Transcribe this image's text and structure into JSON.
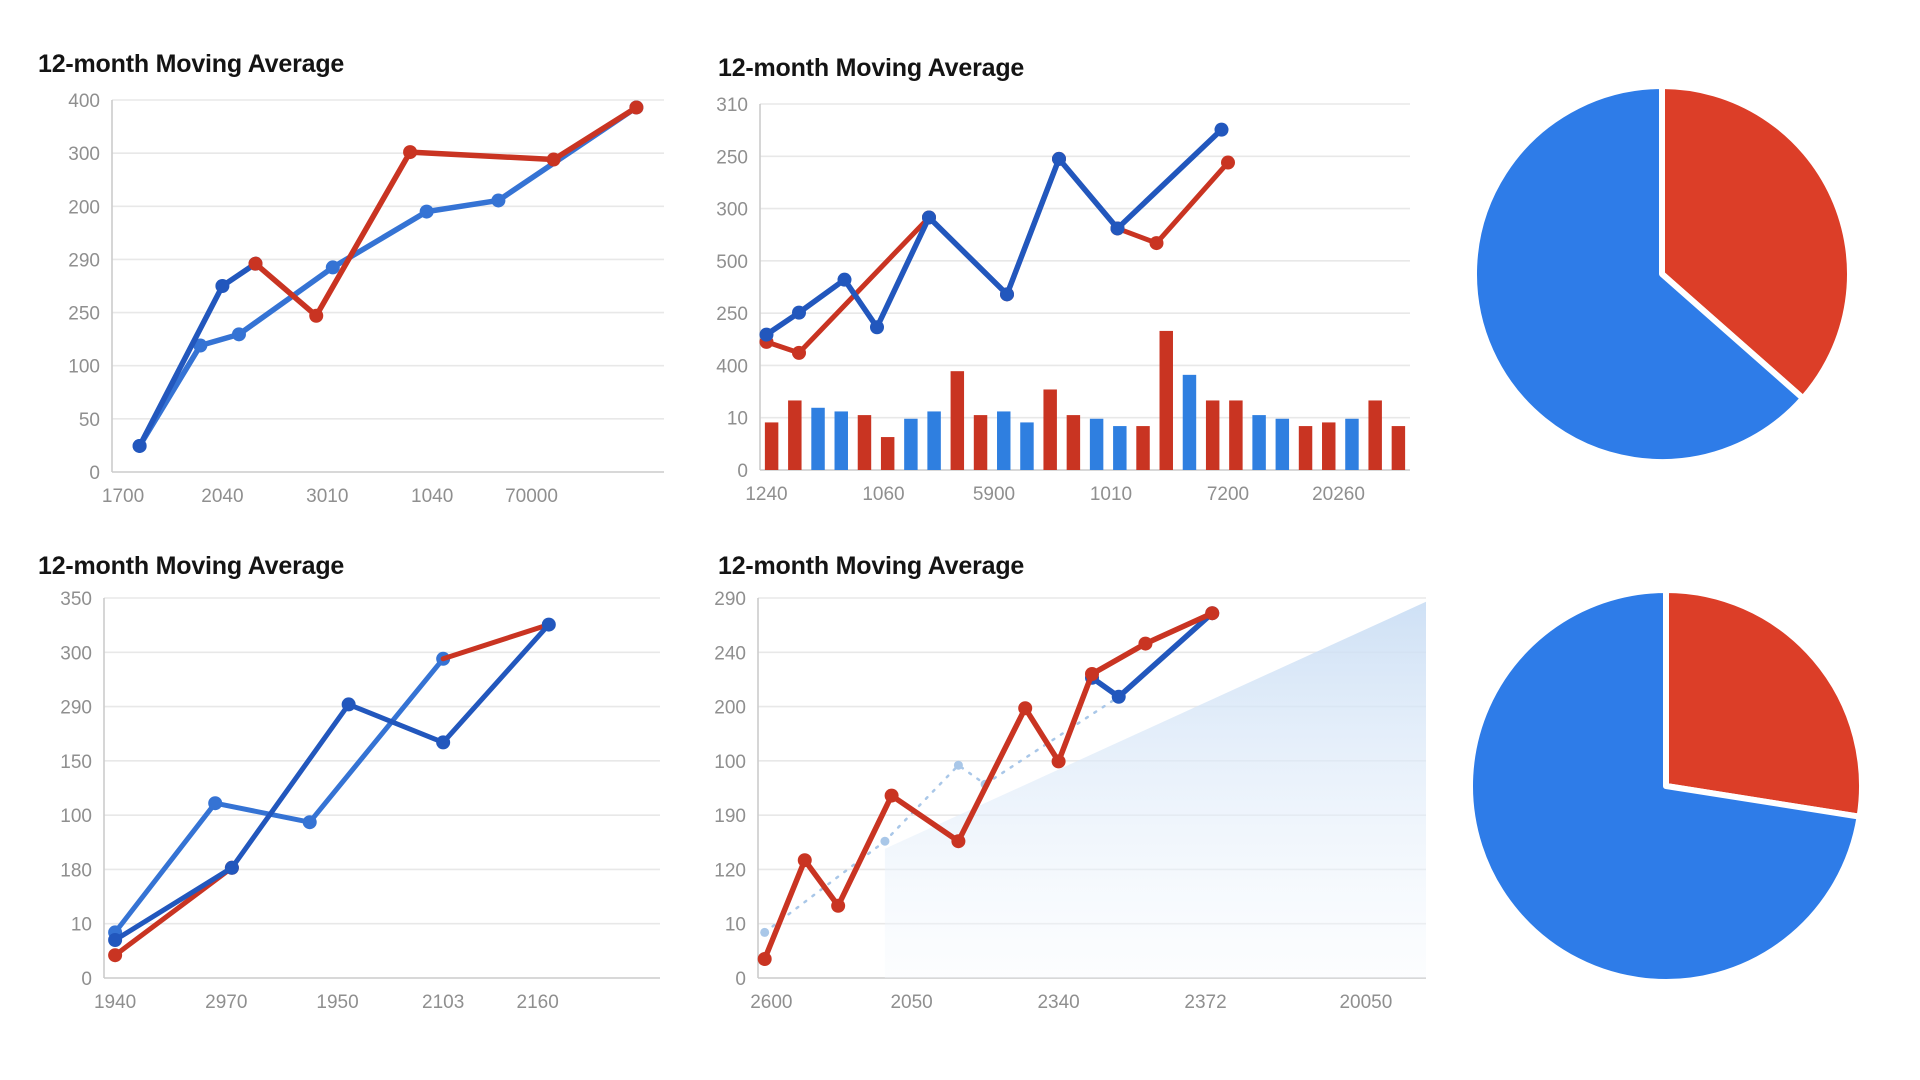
{
  "page": {
    "background": "#ffffff"
  },
  "palette": {
    "blue_dark": "#2257bd",
    "blue_medium": "#3573d4",
    "blue_bright": "#2f7fe0",
    "blue_light": "#a9c7e8",
    "red": "#c93422",
    "pie_blue": "#2e7ce8",
    "pie_red": "#dc3e28",
    "grid": "#e8e8e8",
    "axis": "#cccccc",
    "tick_text": "#8f8f8f",
    "title_text": "#141414",
    "area_top": "#c9ddf4",
    "area_bottom": "#f6fafe"
  },
  "chart_data": [
    {
      "id": "chart-top-left",
      "type": "line",
      "title": "12-month Moving Average",
      "y_tick_labels": [
        "400",
        "300",
        "200",
        "290",
        "250",
        "100",
        "50",
        "0"
      ],
      "x_tick_labels": [
        "1700",
        "2040",
        "3010",
        "1040",
        "70000"
      ],
      "x_tick_pct": [
        2,
        20,
        39,
        58,
        76
      ],
      "grid": true,
      "series": [
        {
          "name": "blue-medium-line",
          "color": "blue_medium",
          "width": 5.5,
          "markers": true,
          "points_pct": [
            [
              5,
              93
            ],
            [
              16,
              66
            ],
            [
              23,
              63
            ],
            [
              40,
              45
            ],
            [
              57,
              30
            ],
            [
              70,
              27
            ],
            [
              95,
              2
            ]
          ]
        },
        {
          "name": "blue-dark-line",
          "color": "blue_dark",
          "width": 5.5,
          "markers": true,
          "points_pct": [
            [
              5,
              93
            ],
            [
              20,
              50
            ],
            [
              26,
              44
            ]
          ]
        },
        {
          "name": "red-line",
          "color": "red",
          "width": 5.5,
          "markers": true,
          "points_pct": [
            [
              26,
              44
            ],
            [
              37,
              58
            ],
            [
              54,
              14
            ],
            [
              80,
              16
            ],
            [
              95,
              2
            ]
          ]
        }
      ]
    },
    {
      "id": "chart-top-middle",
      "type": "line+bar",
      "title": "12-month Moving Average",
      "y_tick_labels": [
        "310",
        "250",
        "300",
        "500",
        "250",
        "400",
        "10",
        "0"
      ],
      "x_tick_labels": [
        "1240",
        "1060",
        "5900",
        "1010",
        "7200",
        "20260"
      ],
      "x_tick_pct": [
        1,
        19,
        36,
        54,
        72,
        89
      ],
      "grid": true,
      "bars": {
        "heights_pct": [
          13,
          19,
          17,
          16,
          15,
          9,
          14,
          16,
          27,
          15,
          16,
          13,
          22,
          15,
          14,
          12,
          12,
          38,
          26,
          19,
          19,
          15,
          14,
          12,
          13,
          14,
          19,
          12
        ],
        "colors": [
          "r",
          "r",
          "b",
          "b",
          "r",
          "r",
          "b",
          "b",
          "r",
          "r",
          "b",
          "b",
          "r",
          "r",
          "b",
          "b",
          "r",
          "r",
          "b",
          "r",
          "r",
          "b",
          "b",
          "r",
          "r",
          "b",
          "r",
          "r"
        ]
      },
      "series": [
        {
          "name": "red-line",
          "color": "red",
          "width": 5,
          "markers": true,
          "points_pct": [
            [
              1,
              65
            ],
            [
              6,
              68
            ],
            [
              26,
              31
            ],
            [
              38,
              52
            ],
            [
              46,
              15
            ],
            [
              55,
              34
            ],
            [
              61,
              38
            ],
            [
              72,
              16
            ]
          ]
        },
        {
          "name": "blue-line",
          "color": "blue_dark",
          "width": 5.5,
          "markers": true,
          "points_pct": [
            [
              1,
              63
            ],
            [
              6,
              57
            ],
            [
              13,
              48
            ],
            [
              18,
              61
            ],
            [
              26,
              31
            ],
            [
              38,
              52
            ],
            [
              46,
              15
            ],
            [
              55,
              34
            ],
            [
              71,
              7
            ]
          ]
        }
      ]
    },
    {
      "id": "chart-bottom-left",
      "type": "line",
      "title": "12-month Moving Average",
      "y_tick_labels": [
        "350",
        "300",
        "290",
        "150",
        "100",
        "180",
        "10",
        "0"
      ],
      "x_tick_labels": [
        "1940",
        "2970",
        "1950",
        "2103",
        "2160"
      ],
      "x_tick_pct": [
        2,
        22,
        42,
        61,
        78
      ],
      "grid": true,
      "series": [
        {
          "name": "red-line-a",
          "color": "red",
          "width": 5,
          "markers": true,
          "points_pct": [
            [
              2,
              94
            ],
            [
              23,
              71
            ]
          ]
        },
        {
          "name": "blue-medium-line",
          "color": "blue_medium",
          "width": 5,
          "markers": true,
          "points_pct": [
            [
              2,
              88
            ],
            [
              20,
              54
            ],
            [
              37,
              59
            ],
            [
              61,
              16
            ]
          ]
        },
        {
          "name": "red-line-b",
          "color": "red",
          "width": 5,
          "markers": false,
          "points_pct": [
            [
              61,
              16
            ],
            [
              80,
              7
            ]
          ]
        },
        {
          "name": "blue-dark-line",
          "color": "blue_dark",
          "width": 5,
          "markers": true,
          "points_pct": [
            [
              2,
              90
            ],
            [
              23,
              71
            ],
            [
              44,
              28
            ],
            [
              61,
              38
            ],
            [
              80,
              7
            ]
          ]
        }
      ]
    },
    {
      "id": "chart-bottom-middle",
      "type": "line+area",
      "title": "12-month Moving Average",
      "y_tick_labels": [
        "290",
        "240",
        "200",
        "100",
        "190",
        "120",
        "10",
        "0"
      ],
      "x_tick_labels": [
        "2600",
        "2050",
        "2340",
        "2372",
        "20050"
      ],
      "x_tick_pct": [
        2,
        23,
        45,
        67,
        91
      ],
      "grid": true,
      "area_pct": [
        [
          19,
          66
        ],
        [
          100,
          1
        ],
        [
          100,
          100
        ],
        [
          19,
          100
        ]
      ],
      "series": [
        {
          "name": "light-dashed-line",
          "color": "blue_light",
          "width": 2.5,
          "dashed": true,
          "markers": true,
          "points_pct": [
            [
              1,
              88
            ],
            [
              19,
              64
            ],
            [
              30,
              44
            ],
            [
              34,
              49
            ],
            [
              54,
              26
            ],
            [
              68,
              4
            ]
          ]
        },
        {
          "name": "blue-segment-line",
          "color": "blue_dark",
          "width": 5.5,
          "markers": true,
          "points_pct": [
            [
              50,
              21
            ],
            [
              54,
              26
            ],
            [
              68,
              4
            ]
          ]
        },
        {
          "name": "red-line",
          "color": "red",
          "width": 5.5,
          "markers": true,
          "points_pct": [
            [
              1,
              95
            ],
            [
              7,
              69
            ],
            [
              12,
              81
            ],
            [
              20,
              52
            ],
            [
              30,
              64
            ],
            [
              40,
              29
            ],
            [
              45,
              43
            ],
            [
              50,
              20
            ],
            [
              58,
              12
            ],
            [
              68,
              4
            ]
          ]
        }
      ]
    },
    {
      "id": "pie-top-right",
      "type": "pie",
      "slices": [
        {
          "label": "red",
          "value_pct": 36.5,
          "color": "pie_red"
        },
        {
          "label": "blue",
          "value_pct": 63.5,
          "color": "pie_blue"
        }
      ]
    },
    {
      "id": "pie-bottom-right",
      "type": "pie",
      "slices": [
        {
          "label": "red",
          "value_pct": 27.5,
          "color": "pie_red"
        },
        {
          "label": "blue",
          "value_pct": 72.5,
          "color": "pie_blue"
        }
      ]
    }
  ]
}
